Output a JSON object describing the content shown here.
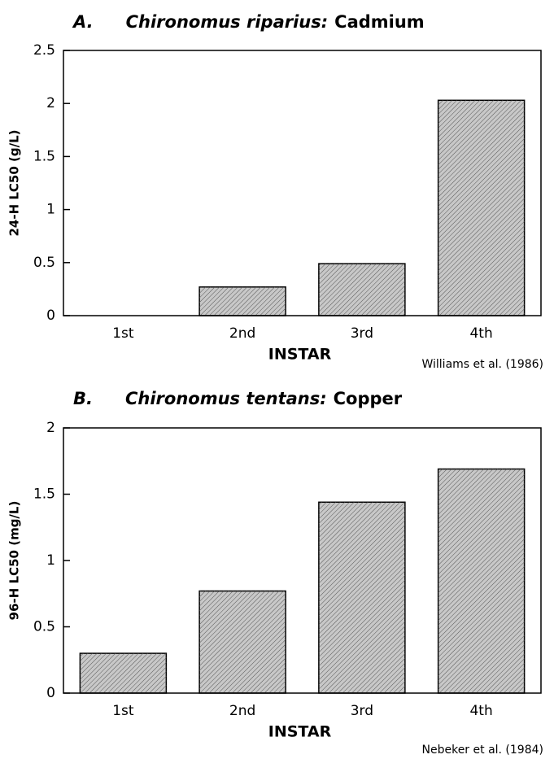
{
  "chart_data": [
    {
      "type": "bar",
      "title_parts": [
        "A.",
        "Chironomus riparius:",
        "Cadmium"
      ],
      "categories": [
        "1st",
        "2nd",
        "3rd",
        "4th"
      ],
      "values": [
        0,
        0.27,
        0.49,
        2.03
      ],
      "color": "#c8c8c8",
      "ylim": [
        0,
        2.5
      ],
      "yticks": [
        0,
        0.5,
        1,
        1.5,
        2,
        2.5
      ],
      "x_label": "INSTAR",
      "y_label": "24-H LC50 (g/L)",
      "source": "Williams et al. (1986)"
    },
    {
      "type": "bar",
      "title_parts": [
        "B.",
        "Chironomus tentans:",
        "Copper"
      ],
      "categories": [
        "1st",
        "2nd",
        "3rd",
        "4th"
      ],
      "values": [
        0.3,
        0.77,
        1.44,
        1.69
      ],
      "color": "#c8c8c8",
      "ylim": [
        0,
        2
      ],
      "yticks": [
        0,
        0.5,
        1,
        1.5,
        2
      ],
      "x_label": "INSTAR",
      "y_label": "96-H LC50 (mg/L)",
      "source": "Nebeker et al. (1984)"
    }
  ]
}
